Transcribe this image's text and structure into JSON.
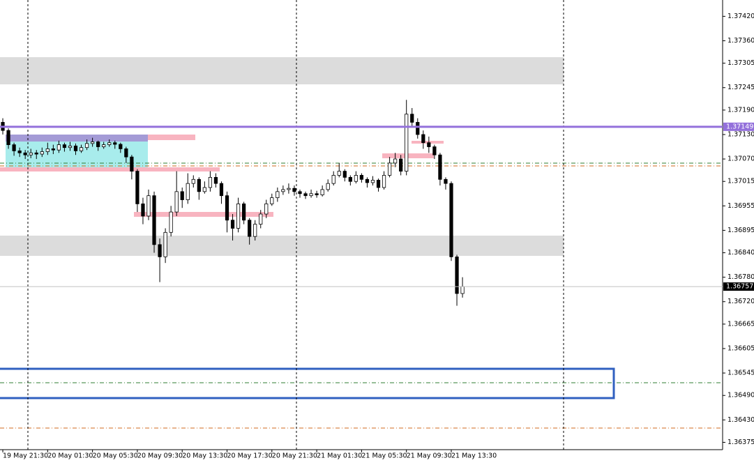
{
  "chart_data": {
    "type": "candlestick",
    "open": [
      1.3716,
      1.3714,
      1.37105,
      1.3709,
      1.37085,
      1.3708,
      1.37085,
      1.37082,
      1.37088,
      1.37095,
      1.37092,
      1.37105,
      1.37098,
      1.37102,
      1.3709,
      1.37098,
      1.37108,
      1.37112,
      1.371,
      1.37105,
      1.3711,
      1.37106,
      1.37095,
      1.37075,
      1.3704,
      1.3696,
      1.3693,
      1.3698,
      1.3686,
      1.3683,
      1.3689,
      1.3694,
      1.3699,
      1.3697,
      1.3701,
      1.3702,
      1.3699,
      1.37,
      1.37025,
      1.3701,
      1.3698,
      1.3692,
      1.369,
      1.3696,
      1.3692,
      1.3688,
      1.3691,
      1.36935,
      1.3696,
      1.36975,
      1.3699,
      1.36995,
      1.36998,
      1.3699,
      1.36985,
      1.3698,
      1.36985,
      1.36982,
      1.36995,
      1.3701,
      1.3703,
      1.3704,
      1.37025,
      1.37015,
      1.3703,
      1.3702,
      1.37012,
      1.37018,
      1.37,
      1.3703,
      1.3706,
      1.3707,
      1.3704,
      1.3718,
      1.3716,
      1.3713,
      1.3711,
      1.371,
      1.3708,
      1.3702,
      1.3701,
      1.3683,
      1.3674
    ],
    "high": [
      1.3717,
      1.37145,
      1.3711,
      1.37098,
      1.37092,
      1.37095,
      1.37092,
      1.37098,
      1.3711,
      1.37105,
      1.37115,
      1.3711,
      1.37112,
      1.37108,
      1.37105,
      1.37118,
      1.37122,
      1.37115,
      1.37112,
      1.37118,
      1.37115,
      1.3711,
      1.371,
      1.3708,
      1.37045,
      1.36975,
      1.36995,
      1.3699,
      1.36875,
      1.369,
      1.36955,
      1.3704,
      1.37,
      1.37035,
      1.3703,
      1.37025,
      1.37015,
      1.3704,
      1.37035,
      1.37015,
      1.3699,
      1.36935,
      1.36975,
      1.36965,
      1.36925,
      1.3692,
      1.36945,
      1.3697,
      1.36985,
      1.37,
      1.37005,
      1.3701,
      1.37005,
      1.36995,
      1.3699,
      1.36995,
      1.36992,
      1.37005,
      1.3702,
      1.3704,
      1.3706,
      1.37045,
      1.3703,
      1.3704,
      1.37035,
      1.37025,
      1.37028,
      1.37022,
      1.3704,
      1.37075,
      1.37085,
      1.3708,
      1.37215,
      1.37195,
      1.3717,
      1.3714,
      1.37125,
      1.37105,
      1.37085,
      1.37025,
      1.37015,
      1.36835,
      1.3678
    ],
    "low": [
      1.3713,
      1.37095,
      1.37078,
      1.37075,
      1.3707,
      1.37072,
      1.3707,
      1.37075,
      1.3708,
      1.37082,
      1.37085,
      1.37088,
      1.3709,
      1.3708,
      1.37085,
      1.37092,
      1.371,
      1.3709,
      1.37095,
      1.371,
      1.37095,
      1.37085,
      1.3706,
      1.3702,
      1.3694,
      1.3691,
      1.3692,
      1.3684,
      1.36768,
      1.36815,
      1.3688,
      1.3693,
      1.3695,
      1.3696,
      1.37,
      1.3697,
      1.36985,
      1.3699,
      1.37,
      1.3696,
      1.3689,
      1.3687,
      1.3689,
      1.3691,
      1.3686,
      1.3687,
      1.369,
      1.36925,
      1.36955,
      1.36965,
      1.36982,
      1.36985,
      1.3698,
      1.36975,
      1.36972,
      1.36975,
      1.36975,
      1.36978,
      1.3699,
      1.37005,
      1.37025,
      1.37015,
      1.37005,
      1.3701,
      1.37012,
      1.37,
      1.37005,
      1.3699,
      1.36995,
      1.37025,
      1.3705,
      1.3703,
      1.3703,
      1.3715,
      1.3712,
      1.37095,
      1.37085,
      1.3707,
      1.37005,
      1.36995,
      1.3682,
      1.3671,
      1.3673
    ],
    "close": [
      1.3714,
      1.37105,
      1.3709,
      1.37085,
      1.3708,
      1.37085,
      1.37082,
      1.37088,
      1.37095,
      1.37092,
      1.37105,
      1.37098,
      1.37102,
      1.3709,
      1.37098,
      1.37108,
      1.37112,
      1.371,
      1.37105,
      1.3711,
      1.37106,
      1.37095,
      1.37075,
      1.3704,
      1.3696,
      1.3693,
      1.3698,
      1.3686,
      1.3683,
      1.3689,
      1.3694,
      1.3699,
      1.3697,
      1.3701,
      1.3702,
      1.3699,
      1.37,
      1.37025,
      1.3701,
      1.3698,
      1.3692,
      1.369,
      1.3696,
      1.3692,
      1.3688,
      1.3691,
      1.36935,
      1.3696,
      1.36975,
      1.3699,
      1.36995,
      1.36998,
      1.3699,
      1.36985,
      1.3698,
      1.36985,
      1.36982,
      1.36995,
      1.3701,
      1.3703,
      1.3704,
      1.37025,
      1.37015,
      1.3703,
      1.3702,
      1.37012,
      1.37018,
      1.37,
      1.3703,
      1.3706,
      1.3707,
      1.3704,
      1.3718,
      1.3716,
      1.3713,
      1.3711,
      1.371,
      1.3708,
      1.3702,
      1.3701,
      1.3683,
      1.3674,
      1.36757
    ],
    "up_color": "#ffffff",
    "down_color": "#000000",
    "wick_color": "#000000",
    "xlim": [
      -0.5,
      128.4
    ],
    "xticks": [
      {
        "value": 0,
        "label": "19 May 21:30"
      },
      {
        "value": 8,
        "label": "20 May 01:30"
      },
      {
        "value": 16,
        "label": "20 May 05:30"
      },
      {
        "value": 24,
        "label": "20 May 09:30"
      },
      {
        "value": 32,
        "label": "20 May 13:30"
      },
      {
        "value": 40,
        "label": "20 May 17:30"
      },
      {
        "value": 48,
        "label": "20 May 21:30"
      },
      {
        "value": 56,
        "label": "21 May 01:30"
      },
      {
        "value": 64,
        "label": "21 May 05:30"
      },
      {
        "value": 72,
        "label": "21 May 09:30"
      },
      {
        "value": 80,
        "label": "21 May 13:30"
      }
    ],
    "ylim": [
      1.36357,
      1.3746
    ],
    "yticks": [
      {
        "value": 1.3742,
        "label": "1.37420"
      },
      {
        "value": 1.3736,
        "label": "1.37360"
      },
      1.37305,
      1.37245,
      {
        "value": 1.3719,
        "label": "1.37190"
      },
      {
        "value": 1.3713,
        "label": "1.37130"
      },
      {
        "value": 1.3707,
        "label": "1.37070"
      },
      1.37015,
      1.36955,
      1.36895,
      {
        "value": 1.3684,
        "label": "1.36840"
      },
      {
        "value": 1.3678,
        "label": "1.36780"
      },
      {
        "value": 1.3672,
        "label": "1.36720"
      },
      1.36665,
      1.36605,
      1.36545,
      {
        "value": 1.3649,
        "label": "1.36490"
      },
      {
        "value": 1.3643,
        "label": "1.36430"
      },
      1.36375
    ],
    "price_lines": [
      {
        "value": 1.37149,
        "color": "#9370db",
        "text_color": "#ffffff",
        "width": 3
      },
      {
        "value": 1.36757,
        "color": "#c0c0c0",
        "label_bg": "#000000",
        "text_color": "#ffffff",
        "width": 1
      }
    ]
  }
}
